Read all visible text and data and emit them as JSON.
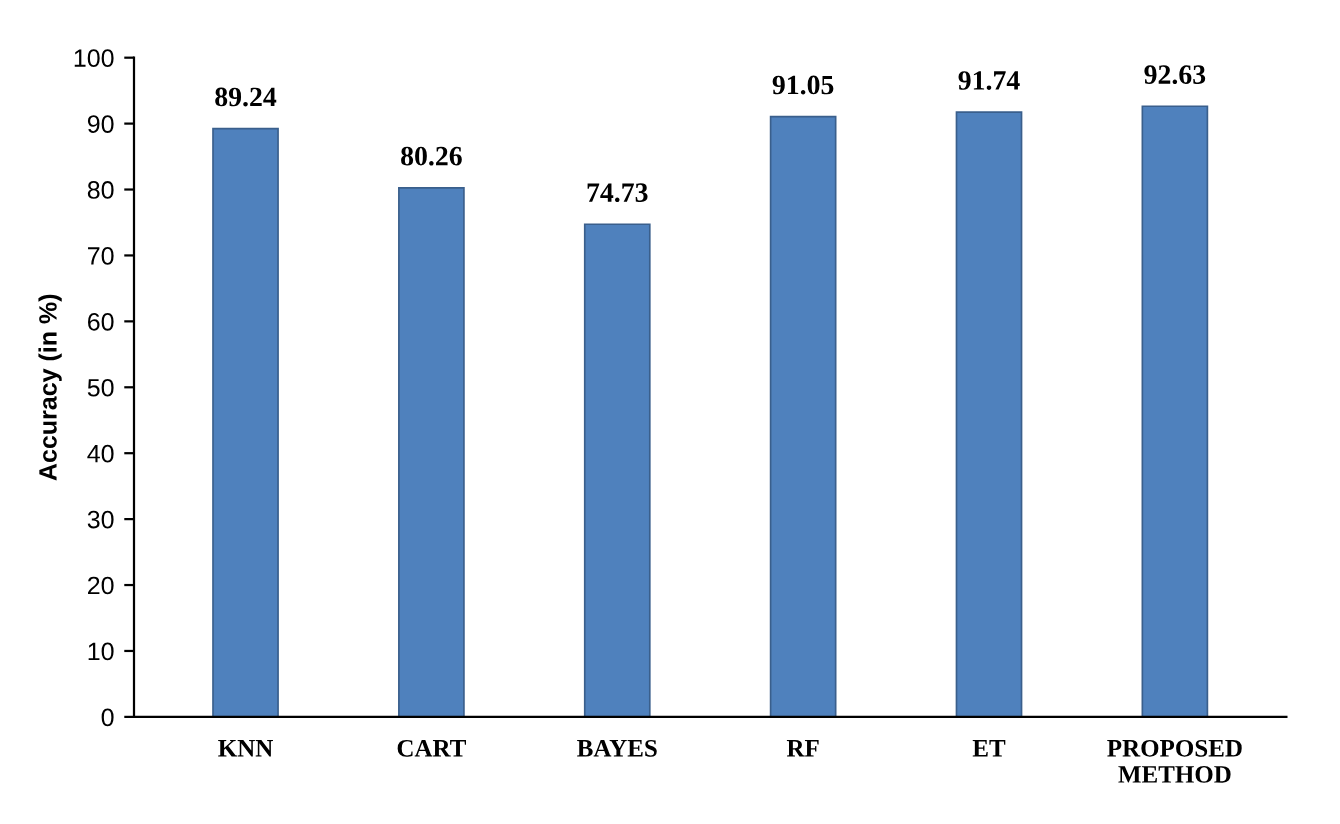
{
  "chart_data": {
    "type": "bar",
    "ylabel": "Accuracy (in %)",
    "categories": [
      "KNN",
      "CART",
      "BAYES",
      "RF",
      "ET",
      "PROPOSED\nMETHOD"
    ],
    "values": [
      89.24,
      80.26,
      74.73,
      91.05,
      91.74,
      92.63
    ],
    "color": "#4f81bd",
    "ylim": [
      0,
      100
    ],
    "yticks": [
      0,
      10,
      20,
      30,
      40,
      50,
      60,
      70,
      80,
      90,
      100
    ],
    "grid": false,
    "data_labels": true,
    "legend": false
  }
}
